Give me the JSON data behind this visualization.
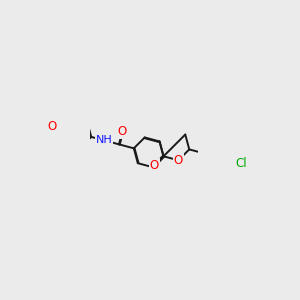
{
  "background_color": "#ebebeb",
  "bond_color": "#1a1a1a",
  "bond_width": 1.4,
  "dbo": 0.055,
  "atom_colors": {
    "O": "#ff0000",
    "N": "#1414ff",
    "Cl": "#00aa00",
    "C": "#1a1a1a"
  },
  "bl": 1.0
}
